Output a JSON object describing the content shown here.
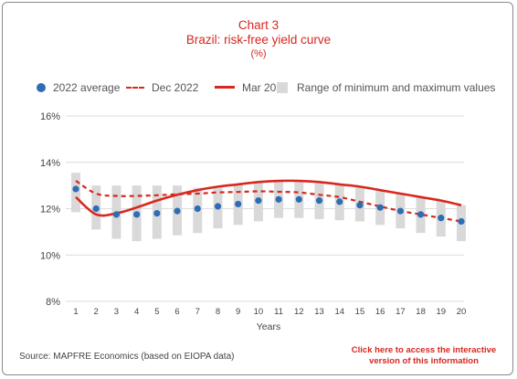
{
  "chart_data": {
    "type": "line",
    "title_line1": "Chart 3",
    "title_line2": "Brazil: risk-free yield curve",
    "unit": "(%)",
    "xlabel": "Years",
    "ylabel": "",
    "x": [
      1,
      2,
      3,
      4,
      5,
      6,
      7,
      8,
      9,
      10,
      11,
      12,
      13,
      14,
      15,
      16,
      17,
      18,
      19,
      20
    ],
    "x_tick_labels": [
      "1",
      "2",
      "3",
      "4",
      "5",
      "6",
      "7",
      "8",
      "9",
      "10",
      "11",
      "12",
      "13",
      "14",
      "15",
      "16",
      "17",
      "18",
      "19",
      "20"
    ],
    "ylim": [
      8,
      16
    ],
    "y_ticks": [
      8,
      10,
      12,
      14,
      16
    ],
    "y_tick_labels": [
      "8%",
      "10%",
      "12%",
      "14%",
      "16%"
    ],
    "grid": "horizontal",
    "legend_position": "top",
    "series": [
      {
        "name": "2022 average",
        "style": "dots",
        "color": "#2e6db4",
        "values": [
          12.85,
          12.0,
          11.75,
          11.75,
          11.8,
          11.9,
          12.0,
          12.1,
          12.2,
          12.35,
          12.4,
          12.4,
          12.35,
          12.3,
          12.15,
          12.05,
          11.9,
          11.75,
          11.6,
          11.45
        ]
      },
      {
        "name": "Dec 2022",
        "style": "dashed",
        "color": "#d6281f",
        "values": [
          13.2,
          12.65,
          12.55,
          12.55,
          12.58,
          12.62,
          12.65,
          12.7,
          12.72,
          12.75,
          12.73,
          12.7,
          12.6,
          12.5,
          12.3,
          12.1,
          11.9,
          11.75,
          11.6,
          11.45
        ]
      },
      {
        "name": "Mar 2023",
        "style": "solid",
        "color": "#d6281f",
        "values": [
          12.5,
          11.75,
          11.8,
          12.05,
          12.35,
          12.6,
          12.8,
          12.95,
          13.05,
          13.15,
          13.2,
          13.2,
          13.15,
          13.05,
          12.95,
          12.8,
          12.65,
          12.5,
          12.35,
          12.15
        ]
      }
    ],
    "ranges": {
      "name": "Range of minimum and maximum values",
      "color": "#d9d9d9",
      "low": [
        11.85,
        11.1,
        10.7,
        10.6,
        10.7,
        10.85,
        10.95,
        11.15,
        11.3,
        11.45,
        11.6,
        11.6,
        11.55,
        11.5,
        11.45,
        11.3,
        11.15,
        10.95,
        10.8,
        10.6
      ],
      "high": [
        13.55,
        13.0,
        13.0,
        13.0,
        13.0,
        13.0,
        12.9,
        12.95,
        13.05,
        13.15,
        13.15,
        13.15,
        13.1,
        13.05,
        12.95,
        12.8,
        12.65,
        12.5,
        12.35,
        12.15
      ]
    }
  },
  "legend": {
    "avg_label": "2022 average",
    "dec_label": "Dec 2022",
    "mar_label": "Mar 2023",
    "range_label": "Range of minimum and maximum values"
  },
  "footer": {
    "source": "Source: MAPFRE Economics (based on EIOPA data)",
    "link_line1": "Click here to access the interactive",
    "link_line2": "version of this information"
  },
  "colors": {
    "accent_red": "#d6281f",
    "dot_blue": "#2e6db4",
    "range_grey": "#d9d9d9",
    "grid_grey": "#dcdcdc"
  }
}
